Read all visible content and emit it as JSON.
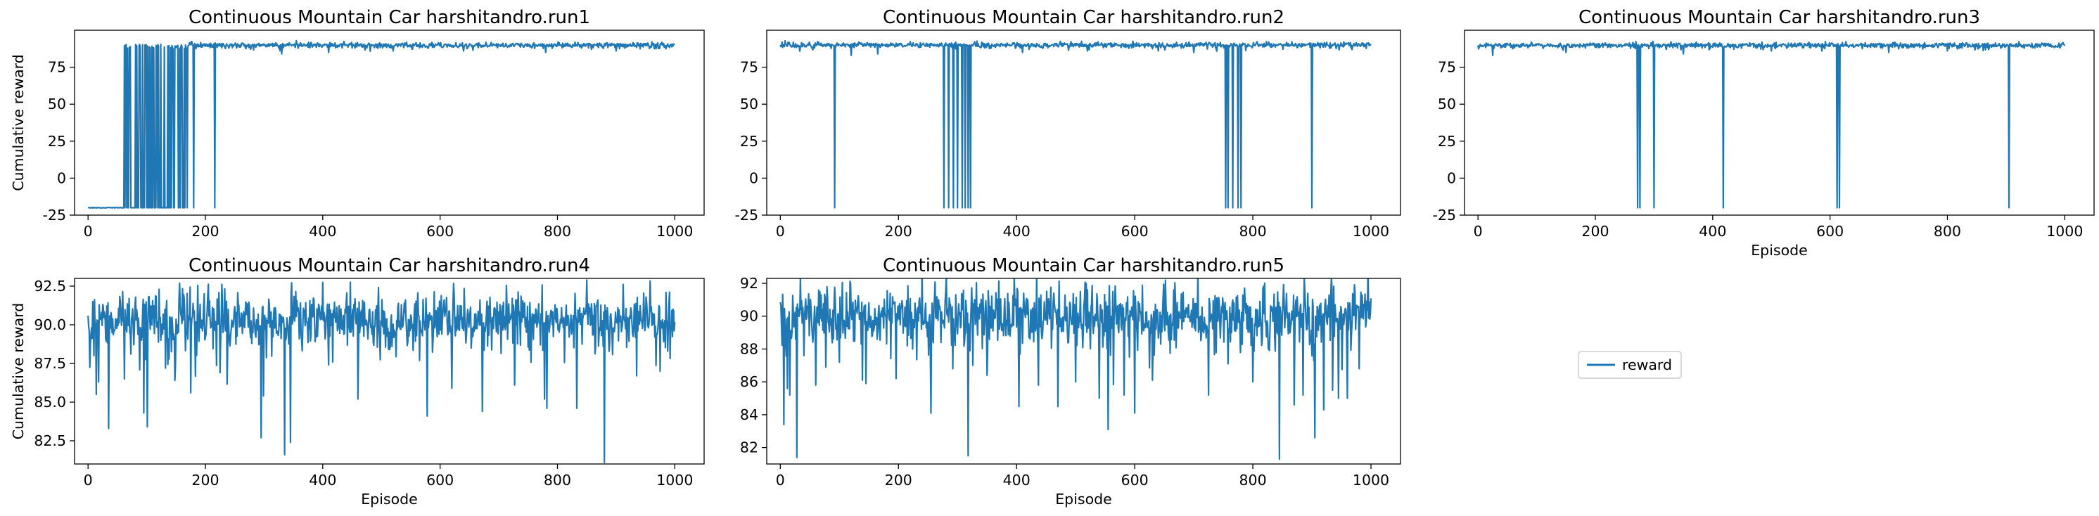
{
  "colors": {
    "series": "#1f77b4",
    "axes": "#000000",
    "background": "#ffffff"
  },
  "legend": {
    "label": "reward",
    "placement": "figure-right-middle"
  },
  "chart_data": [
    {
      "type": "line",
      "title": "Continuous Mountain Car harshitandro.run1",
      "xlabel": "",
      "ylabel": "Cumulative reward",
      "xlim": [
        -23,
        1050
      ],
      "ylim": [
        -25,
        100
      ],
      "xticks": [
        0,
        200,
        400,
        600,
        800,
        1000
      ],
      "yticks": [
        -25,
        0,
        25,
        50,
        75
      ],
      "generator": {
        "seed": 11,
        "n": 1001,
        "base": 89.8,
        "noise": 0.9,
        "dropsRun": [
          [
            0,
            60,
            -20
          ]
        ],
        "alternating": [
          60,
          170,
          -20,
          89
        ],
        "spikes": [
          [
            180,
            -20
          ],
          [
            216,
            -20
          ]
        ],
        "dips": [
          [
            330,
            84
          ],
          [
            410,
            85
          ],
          [
            520,
            86
          ],
          [
            640,
            86
          ],
          [
            780,
            85
          ],
          [
            900,
            86
          ]
        ]
      }
    },
    {
      "type": "line",
      "title": "Continuous Mountain Car harshitandro.run2",
      "xlabel": "",
      "ylabel": "",
      "xlim": [
        -23,
        1050
      ],
      "ylim": [
        -25,
        100
      ],
      "xticks": [
        0,
        200,
        400,
        600,
        800,
        1000
      ],
      "yticks": [
        -25,
        0,
        25,
        50,
        75
      ],
      "generator": {
        "seed": 22,
        "n": 1001,
        "base": 90.0,
        "noise": 0.9,
        "spikes": [
          [
            92,
            -20
          ],
          [
            277,
            -20
          ],
          [
            285,
            -20
          ],
          [
            293,
            -20
          ],
          [
            300,
            -20
          ],
          [
            308,
            -20
          ],
          [
            313,
            -20
          ],
          [
            318,
            -20
          ],
          [
            322,
            -20
          ],
          [
            754,
            -20
          ],
          [
            758,
            -20
          ],
          [
            766,
            -20
          ],
          [
            775,
            -20
          ],
          [
            780,
            -20
          ],
          [
            900,
            -20
          ]
        ],
        "dips": [
          [
            120,
            83
          ],
          [
            165,
            84
          ],
          [
            410,
            85
          ],
          [
            520,
            86
          ],
          [
            640,
            86
          ],
          [
            700,
            85
          ]
        ]
      }
    },
    {
      "type": "line",
      "title": "Continuous Mountain Car harshitandro.run3",
      "xlabel": "Episode",
      "ylabel": "",
      "xlim": [
        -23,
        1050
      ],
      "ylim": [
        -25,
        100
      ],
      "xticks": [
        0,
        200,
        400,
        600,
        800,
        1000
      ],
      "yticks": [
        -25,
        0,
        25,
        50,
        75
      ],
      "generator": {
        "seed": 33,
        "n": 1001,
        "base": 89.8,
        "noise": 0.9,
        "spikes": [
          [
            272,
            -20
          ],
          [
            276,
            -20
          ],
          [
            300,
            -20
          ],
          [
            418,
            -20
          ],
          [
            612,
            -20
          ],
          [
            616,
            -20
          ],
          [
            905,
            -20
          ]
        ],
        "dips": [
          [
            25,
            83
          ],
          [
            150,
            85
          ],
          [
            350,
            84
          ],
          [
            500,
            86
          ],
          [
            700,
            85
          ],
          [
            800,
            86
          ]
        ]
      }
    },
    {
      "type": "line",
      "title": "Continuous Mountain Car harshitandro.run4",
      "xlabel": "Episode",
      "ylabel": "Cumulative reward",
      "xlim": [
        -23,
        1050
      ],
      "ylim": [
        81,
        93
      ],
      "xticks": [
        0,
        200,
        400,
        600,
        800,
        1000
      ],
      "yticks": [
        82.5,
        85.0,
        87.5,
        90.0,
        92.5
      ],
      "generator": {
        "seed": 44,
        "n": 1001,
        "base": 90.3,
        "noise": 0.9,
        "dips": [
          [
            10,
            88.0
          ],
          [
            14,
            85.5
          ],
          [
            18,
            86.3
          ],
          [
            35,
            83.3
          ],
          [
            62,
            86.5
          ],
          [
            95,
            84.3
          ],
          [
            101,
            83.4
          ],
          [
            132,
            87.2
          ],
          [
            148,
            86.4
          ],
          [
            175,
            85.6
          ],
          [
            225,
            86.9
          ],
          [
            295,
            82.7
          ],
          [
            299,
            85.4
          ],
          [
            335,
            81.6
          ],
          [
            345,
            82.4
          ],
          [
            410,
            87.4
          ],
          [
            460,
            85.2
          ],
          [
            578,
            84.1
          ],
          [
            620,
            85.9
          ],
          [
            672,
            84.4
          ],
          [
            727,
            86.1
          ],
          [
            778,
            85.2
          ],
          [
            782,
            84.6
          ],
          [
            833,
            84.6
          ],
          [
            880,
            81.1
          ],
          [
            935,
            86.7
          ],
          [
            975,
            87.0
          ]
        ]
      }
    },
    {
      "type": "line",
      "title": "Continuous Mountain Car harshitandro.run5",
      "xlabel": "Episode",
      "ylabel": "",
      "xlim": [
        -23,
        1050
      ],
      "ylim": [
        81,
        92.3
      ],
      "xticks": [
        0,
        200,
        400,
        600,
        800,
        1000
      ],
      "yticks": [
        82,
        84,
        86,
        88,
        90,
        92
      ],
      "generator": {
        "seed": 55,
        "n": 1001,
        "base": 90.0,
        "noise": 0.95,
        "dips": [
          [
            6,
            83.4
          ],
          [
            12,
            85.6
          ],
          [
            16,
            85.2
          ],
          [
            28,
            81.4
          ],
          [
            40,
            87.6
          ],
          [
            60,
            85.8
          ],
          [
            77,
            86.9
          ],
          [
            100,
            87.2
          ],
          [
            145,
            85.9
          ],
          [
            196,
            86.2
          ],
          [
            255,
            84.1
          ],
          [
            292,
            86.8
          ],
          [
            318,
            81.5
          ],
          [
            350,
            86.4
          ],
          [
            404,
            84.5
          ],
          [
            437,
            85.8
          ],
          [
            470,
            84.5
          ],
          [
            500,
            86.0
          ],
          [
            540,
            85.0
          ],
          [
            555,
            83.1
          ],
          [
            582,
            85.2
          ],
          [
            600,
            84.1
          ],
          [
            630,
            86.1
          ],
          [
            725,
            85.2
          ],
          [
            800,
            86.0
          ],
          [
            845,
            81.3
          ],
          [
            870,
            84.6
          ],
          [
            885,
            85.2
          ],
          [
            905,
            82.6
          ],
          [
            920,
            84.3
          ],
          [
            935,
            85.5
          ],
          [
            945,
            85.0
          ],
          [
            960,
            85.0
          ],
          [
            980,
            86.8
          ]
        ]
      }
    }
  ]
}
